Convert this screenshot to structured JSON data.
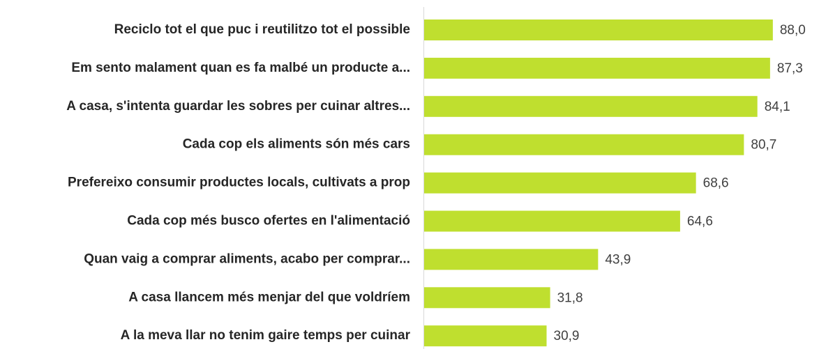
{
  "chart_data": {
    "type": "bar",
    "orientation": "horizontal",
    "categories": [
      "Reciclo tot el que puc i reutilitzo tot el possible",
      "Em sento malament quan es fa malbé un producte a...",
      "A casa, s'intenta guardar les sobres per cuinar altres...",
      "Cada cop els aliments són més cars",
      "Prefereixo consumir productes locals, cultivats a prop",
      "Cada cop més busco ofertes en l'alimentació",
      "Quan vaig a comprar aliments, acabo per comprar...",
      "A casa llancem més menjar del que voldríem",
      "A la meva llar no tenim gaire temps per cuinar"
    ],
    "values": [
      88.0,
      87.3,
      84.1,
      80.7,
      68.6,
      64.6,
      43.9,
      31.8,
      30.9
    ],
    "value_labels": [
      "88,0",
      "87,3",
      "84,1",
      "80,7",
      "68,6",
      "64,6",
      "43,9",
      "31,8",
      "30,9"
    ],
    "color": "#bfdf2f",
    "xlim": [
      0,
      100
    ]
  }
}
